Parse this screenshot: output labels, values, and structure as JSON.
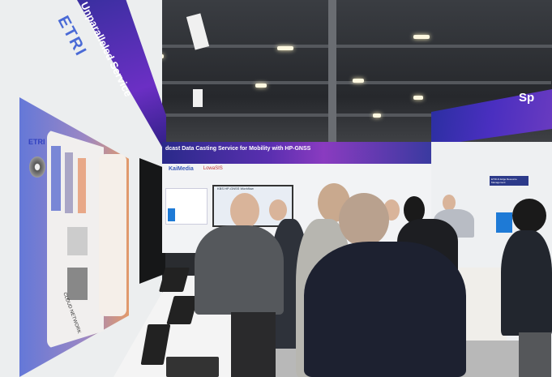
{
  "scene": {
    "left_banner_text": "Unparalleled Service",
    "left_banner_logo": "ETRI",
    "poster": {
      "logo": "ETRI",
      "bottom_label": "CLOUD NETWORK"
    },
    "back_banner_text": "dcast Data Casting Service for Mobility with HP-GNSS",
    "sponsor_logos": [
      "KaiMedia",
      "LowaSIS"
    ],
    "screen_title": "KBS HP-GNSS Workflow",
    "right_banner_text": "Sp",
    "right_wall_box": "ETRI AI Edge Resource Management",
    "colors": {
      "banner_purple": "#4a2fb0",
      "poster_blue": "#6478d8",
      "poster_orange": "#e39a6a"
    }
  }
}
